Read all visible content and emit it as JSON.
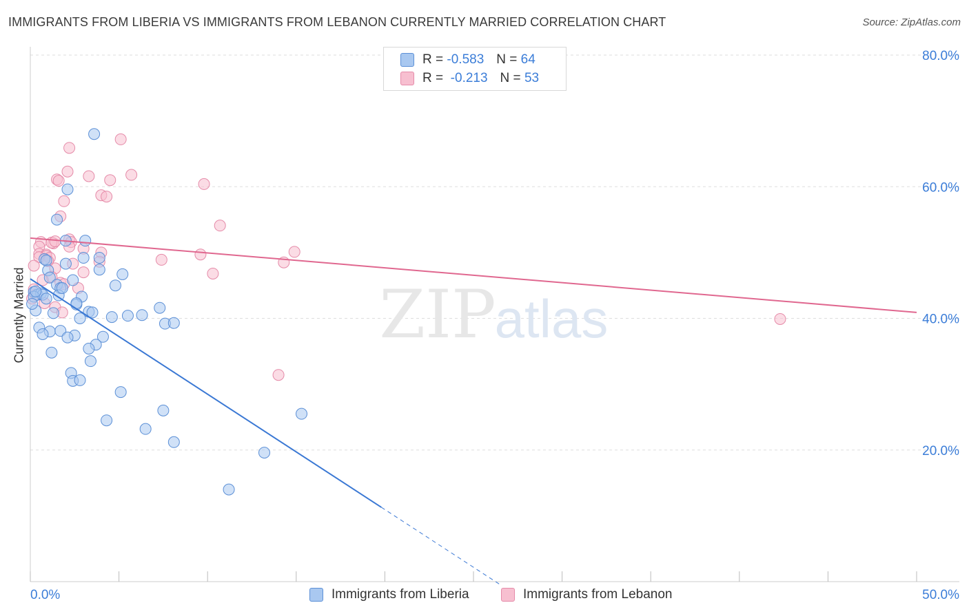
{
  "title": "IMMIGRANTS FROM LIBERIA VS IMMIGRANTS FROM LEBANON CURRENTLY MARRIED CORRELATION CHART",
  "source": "Source: ZipAtlas.com",
  "watermark": {
    "zip": "ZIP",
    "atlas": "atlas"
  },
  "legend": {
    "liberia": {
      "r_label": "R =",
      "r_value": "-0.583",
      "n_label": "N =",
      "n_value": "64"
    },
    "lebanon": {
      "r_label": "R =",
      "r_value": "-0.213",
      "n_label": "N =",
      "n_value": "53"
    }
  },
  "colors": {
    "liberia_fill": "#a9c8f0",
    "liberia_stroke": "#5b8fd6",
    "liberia_line": "#3a78d4",
    "lebanon_fill": "#f7bfd0",
    "lebanon_stroke": "#e58aa8",
    "lebanon_line": "#e0678f",
    "tick_label": "#3b7dd8",
    "grid": "#dddddd"
  },
  "chart_data": {
    "type": "scatter",
    "title": "IMMIGRANTS FROM LIBERIA VS IMMIGRANTS FROM LEBANON CURRENTLY MARRIED CORRELATION CHART",
    "xlabel": "",
    "ylabel": "Currently Married",
    "xlim": [
      0,
      50
    ],
    "ylim": [
      0,
      80
    ],
    "x_tick_labels": [
      "0.0%",
      "50.0%"
    ],
    "y_ticks": [
      20,
      40,
      60,
      80
    ],
    "y_tick_labels": [
      "20.0%",
      "40.0%",
      "60.0%",
      "80.0%"
    ],
    "grid": true,
    "series": [
      {
        "name": "Immigrants from Liberia",
        "r": -0.583,
        "n": 64,
        "trend": {
          "x0": 0.0,
          "y0": 46.0,
          "x1": 19.8,
          "y1": 11.3,
          "dash_x_end": 26.5
        },
        "points": [
          [
            3.6,
            68.0
          ],
          [
            2.1,
            59.6
          ],
          [
            1.5,
            55.0
          ],
          [
            2.0,
            51.8
          ],
          [
            3.1,
            51.8
          ],
          [
            0.8,
            49.0
          ],
          [
            0.9,
            48.8
          ],
          [
            3.0,
            49.2
          ],
          [
            3.9,
            49.2
          ],
          [
            2.0,
            48.3
          ],
          [
            1.0,
            47.3
          ],
          [
            3.9,
            47.4
          ],
          [
            5.2,
            46.7
          ],
          [
            1.1,
            46.2
          ],
          [
            2.4,
            45.8
          ],
          [
            1.5,
            45.1
          ],
          [
            1.7,
            44.6
          ],
          [
            4.8,
            45.0
          ],
          [
            0.2,
            44.0
          ],
          [
            0.4,
            43.6
          ],
          [
            0.6,
            43.8
          ],
          [
            0.7,
            43.6
          ],
          [
            0.2,
            43.3
          ],
          [
            0.9,
            43.0
          ],
          [
            1.6,
            43.5
          ],
          [
            2.9,
            43.3
          ],
          [
            2.6,
            42.1
          ],
          [
            7.3,
            41.6
          ],
          [
            0.3,
            41.2
          ],
          [
            1.3,
            40.8
          ],
          [
            3.3,
            41.0
          ],
          [
            3.5,
            40.9
          ],
          [
            4.6,
            40.2
          ],
          [
            5.5,
            40.4
          ],
          [
            6.3,
            40.5
          ],
          [
            2.8,
            40.0
          ],
          [
            7.6,
            39.2
          ],
          [
            8.1,
            39.3
          ],
          [
            0.5,
            38.6
          ],
          [
            1.1,
            38.0
          ],
          [
            1.7,
            38.1
          ],
          [
            2.5,
            37.4
          ],
          [
            0.7,
            37.6
          ],
          [
            2.1,
            37.1
          ],
          [
            4.1,
            37.2
          ],
          [
            3.7,
            36.0
          ],
          [
            3.3,
            35.4
          ],
          [
            1.2,
            34.8
          ],
          [
            3.4,
            33.5
          ],
          [
            2.3,
            31.7
          ],
          [
            2.4,
            30.5
          ],
          [
            2.8,
            30.6
          ],
          [
            5.1,
            28.8
          ],
          [
            7.5,
            26.0
          ],
          [
            15.3,
            25.5
          ],
          [
            4.3,
            24.5
          ],
          [
            6.5,
            23.2
          ],
          [
            8.1,
            21.2
          ],
          [
            13.2,
            19.6
          ],
          [
            11.2,
            14.0
          ],
          [
            0.1,
            42.2
          ],
          [
            0.3,
            44.1
          ],
          [
            1.8,
            44.6
          ],
          [
            2.6,
            42.3
          ]
        ]
      },
      {
        "name": "Immigrants from Lebanon",
        "r": -0.213,
        "n": 53,
        "trend": {
          "x0": 0.0,
          "y0": 52.2,
          "x1": 50.0,
          "y1": 40.9
        },
        "points": [
          [
            5.1,
            67.2
          ],
          [
            2.2,
            65.9
          ],
          [
            2.1,
            62.3
          ],
          [
            3.3,
            61.6
          ],
          [
            5.7,
            61.8
          ],
          [
            1.5,
            61.1
          ],
          [
            1.6,
            60.9
          ],
          [
            4.5,
            61.0
          ],
          [
            9.8,
            60.4
          ],
          [
            1.9,
            57.8
          ],
          [
            4.0,
            58.7
          ],
          [
            4.3,
            58.5
          ],
          [
            1.7,
            55.5
          ],
          [
            10.7,
            54.1
          ],
          [
            0.6,
            51.6
          ],
          [
            1.3,
            51.4
          ],
          [
            2.2,
            52.0
          ],
          [
            0.5,
            50.9
          ],
          [
            1.2,
            51.5
          ],
          [
            0.5,
            49.8
          ],
          [
            0.9,
            49.7
          ],
          [
            3.0,
            50.6
          ],
          [
            0.9,
            49.5
          ],
          [
            0.5,
            49.3
          ],
          [
            1.1,
            49.2
          ],
          [
            4.0,
            50.0
          ],
          [
            9.6,
            49.7
          ],
          [
            14.9,
            50.1
          ],
          [
            1.0,
            48.7
          ],
          [
            3.9,
            48.6
          ],
          [
            0.2,
            48.0
          ],
          [
            2.4,
            48.3
          ],
          [
            7.4,
            48.9
          ],
          [
            14.3,
            48.5
          ],
          [
            1.4,
            47.6
          ],
          [
            3.0,
            47.0
          ],
          [
            10.3,
            46.8
          ],
          [
            1.2,
            46.3
          ],
          [
            1.7,
            45.4
          ],
          [
            2.7,
            44.6
          ],
          [
            0.2,
            44.4
          ],
          [
            0.3,
            43.6
          ],
          [
            1.4,
            41.7
          ],
          [
            1.8,
            40.9
          ],
          [
            42.3,
            39.9
          ],
          [
            14.0,
            31.4
          ],
          [
            0.7,
            45.8
          ],
          [
            1.9,
            45.2
          ],
          [
            0.1,
            43.0
          ],
          [
            0.8,
            42.3
          ],
          [
            2.3,
            51.6
          ],
          [
            1.4,
            51.7
          ],
          [
            2.2,
            50.9
          ]
        ]
      }
    ]
  },
  "bottom_legend": {
    "liberia": "Immigrants from Liberia",
    "lebanon": "Immigrants from Lebanon"
  }
}
